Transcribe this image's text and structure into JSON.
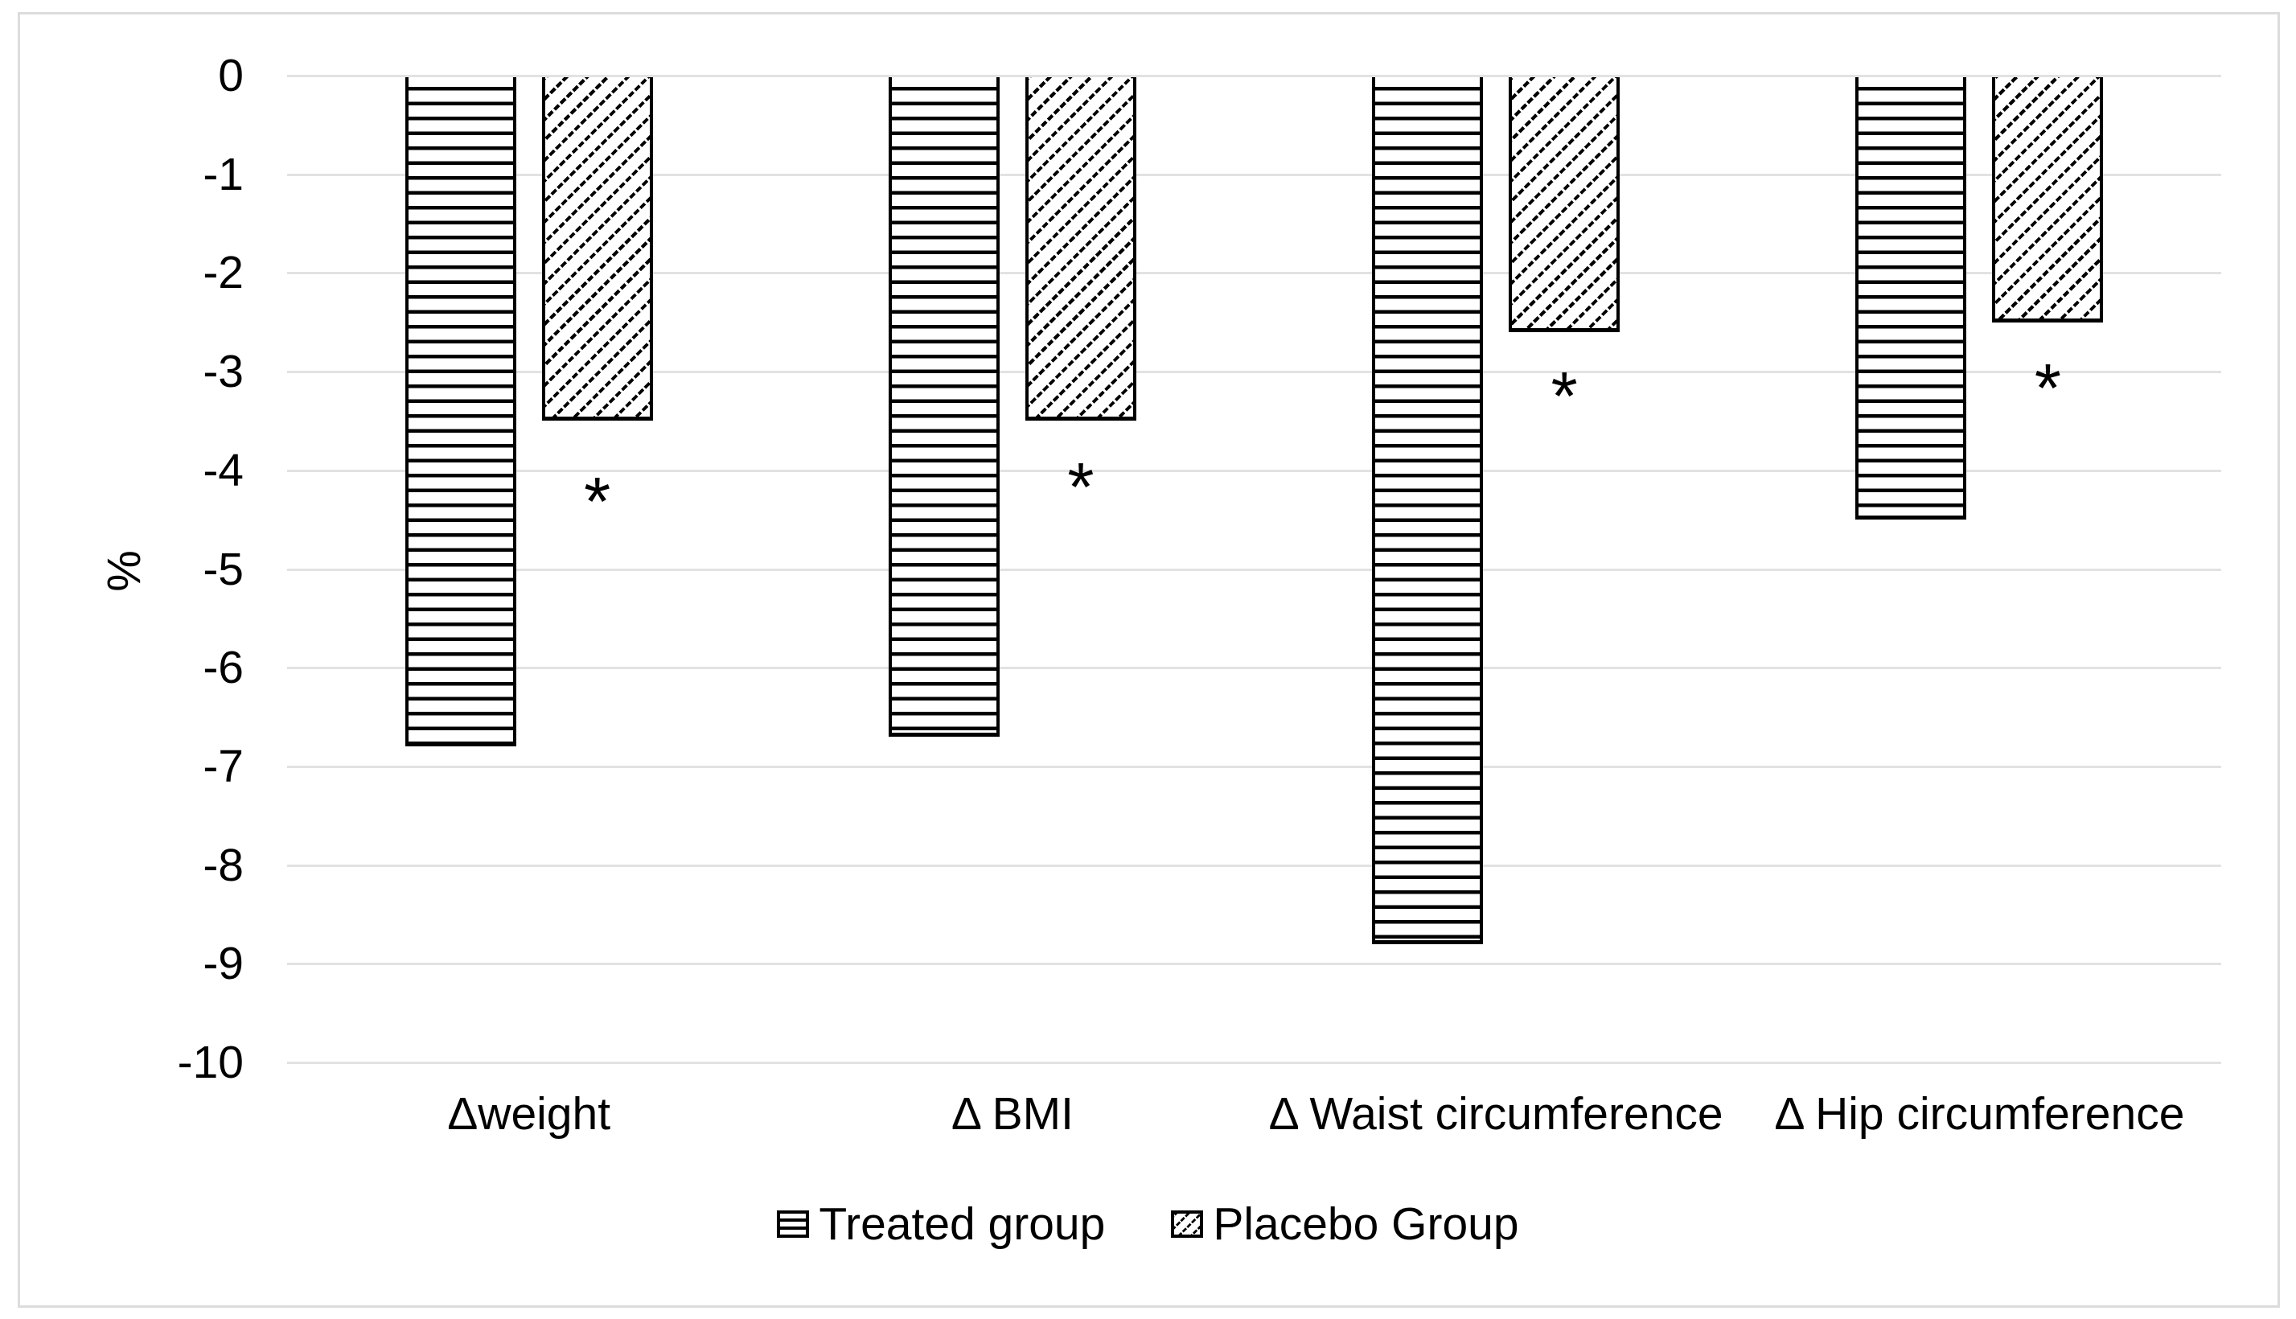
{
  "figure": {
    "background_color": "#ffffff",
    "frame_border_color": "#dcdcdc"
  },
  "chart_data": {
    "type": "bar",
    "title": "",
    "xlabel": "",
    "ylabel": "%",
    "categories": [
      "Δweight",
      "Δ BMI",
      "Δ Waist circumference",
      "Δ Hip circumference"
    ],
    "series": [
      {
        "name": "Treated group",
        "pattern": "horizontal-lines",
        "values": [
          -6.8,
          -6.7,
          -8.8,
          -4.5
        ]
      },
      {
        "name": "Placebo Group",
        "pattern": "diagonal-hatch",
        "values": [
          -3.5,
          -3.5,
          -2.6,
          -2.5
        ]
      }
    ],
    "annotations": [
      {
        "text": "*",
        "category_index": 0,
        "series_index": 1,
        "value": -4.2
      },
      {
        "text": "*",
        "category_index": 1,
        "series_index": 1,
        "value": -4.05
      },
      {
        "text": "*",
        "category_index": 2,
        "series_index": 1,
        "value": -3.13
      },
      {
        "text": "*",
        "category_index": 3,
        "series_index": 1,
        "value": -3.05
      }
    ],
    "ylim": [
      -10,
      0
    ],
    "yticks": [
      "0",
      "-1",
      "-2",
      "-3",
      "-4",
      "-5",
      "-6",
      "-7",
      "-8",
      "-9",
      "-10"
    ],
    "grid": true,
    "gridline_color": "#e2e2e2",
    "bar_fill_color": "#ffffff",
    "bar_border_color": "#000000",
    "legend_position": "bottom"
  }
}
